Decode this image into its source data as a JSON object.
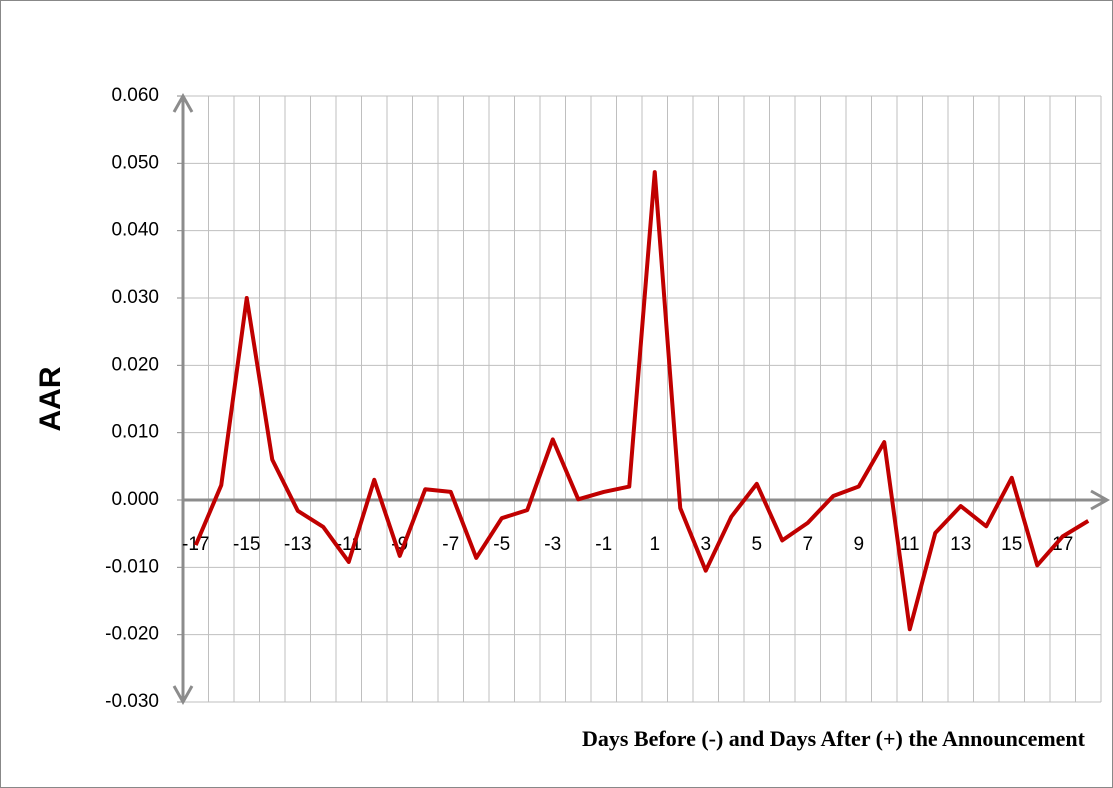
{
  "chart_data": {
    "type": "line",
    "y_label": "AAR",
    "x_label": "Days Before (-) and Days After (+) the Announcement",
    "categories": [
      "-17",
      null,
      "-15",
      null,
      "-13",
      null,
      "-11",
      null,
      "-9",
      null,
      "-7",
      null,
      "-5",
      null,
      "-3",
      null,
      "-1",
      null,
      "1",
      null,
      "3",
      null,
      "5",
      null,
      "7",
      null,
      "9",
      null,
      "11",
      null,
      "13",
      null,
      "15",
      null,
      "17",
      null
    ],
    "series": [
      {
        "name": "AAR",
        "color": "#c00000",
        "values": [
          -0.0067,
          0.0022,
          0.03,
          0.006,
          -0.0016,
          -0.004,
          -0.0092,
          0.003,
          -0.0083,
          0.0016,
          0.0012,
          -0.0086,
          -0.0027,
          -0.0015,
          0.009,
          0.0001,
          0.0012,
          0.002,
          0.0487,
          -0.0012,
          -0.0105,
          -0.0025,
          0.0024,
          -0.006,
          -0.0034,
          0.0006,
          0.002,
          0.0086,
          -0.0192,
          -0.0049,
          -0.0009,
          -0.0039,
          0.0033,
          -0.0097,
          -0.0054,
          -0.0031
        ]
      }
    ],
    "ylim": [
      -0.03,
      0.06
    ],
    "yticks": [
      {
        "value": -0.03,
        "label": "-0.030"
      },
      {
        "value": -0.02,
        "label": "-0.020"
      },
      {
        "value": -0.01,
        "label": "-0.010"
      },
      {
        "value": 0,
        "label": "0.000"
      },
      {
        "value": 0.01,
        "label": "0.010"
      },
      {
        "value": 0.02,
        "label": "0.020"
      },
      {
        "value": 0.03,
        "label": "0.030"
      },
      {
        "value": 0.04,
        "label": "0.040"
      },
      {
        "value": 0.05,
        "label": "0.050"
      },
      {
        "value": 0.06,
        "label": "0.060"
      }
    ],
    "grid": true
  }
}
